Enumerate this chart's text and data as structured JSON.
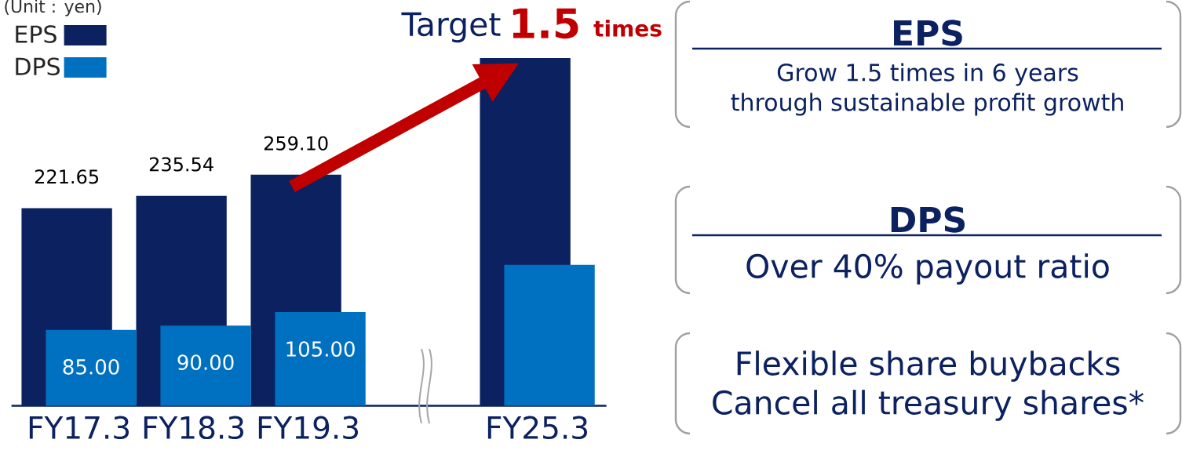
{
  "chart_data": [
    {
      "type": "bar",
      "categories": [
        "FY17.3",
        "FY18.3",
        "FY19.3",
        null,
        "FY25.3"
      ],
      "series": [
        {
          "name": "EPS",
          "color": "#0b2160",
          "values": [
            221.65,
            235.54,
            259.1,
            null,
            390
          ],
          "value_labels": [
            "221.65",
            "235.54",
            "259.10",
            null,
            null
          ]
        },
        {
          "name": "DPS",
          "color": "#0070c0",
          "values": [
            85,
            90,
            105,
            null,
            158
          ],
          "value_labels": [
            "85.00",
            "90.00",
            "105.00",
            null,
            null
          ]
        }
      ],
      "tick_labels": "x",
      "legend": "top left",
      "annotations": [
        "(Unit : yen)",
        "Target",
        "1.5",
        "times"
      ]
    },
    {
      "type": "other",
      "title": "EPS",
      "annotations": [
        "Grow 1.5 times in 6 years",
        "through sustainable profit growth"
      ]
    },
    {
      "type": "other",
      "title": "DPS",
      "annotations": [
        "Over 40% payout ratio"
      ]
    },
    {
      "type": "other",
      "annotations": [
        "Flexible share buybacks",
        "Cancel all treasury shares*"
      ]
    }
  ]
}
